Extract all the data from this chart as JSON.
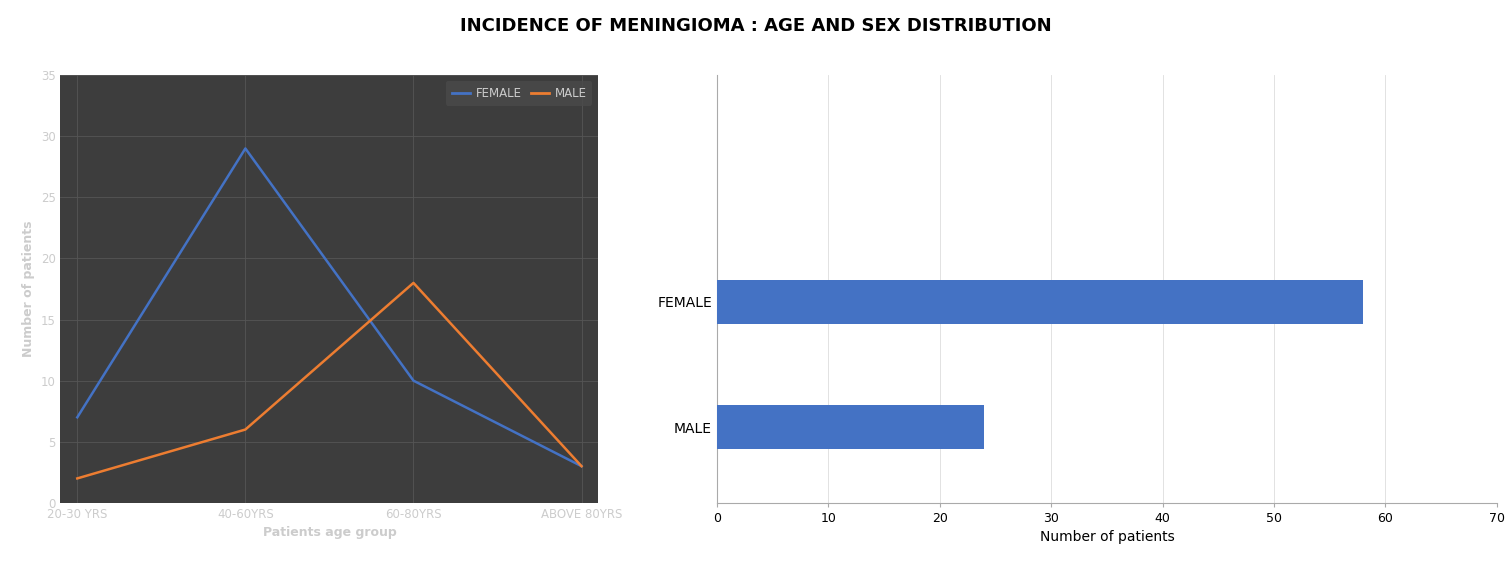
{
  "title": "INCIDENCE OF MENINGIOMA : AGE AND SEX DISTRIBUTION",
  "title_fontsize": 13,
  "title_fontweight": "bold",
  "line_chart": {
    "categories": [
      "20-30 YRS",
      "40-60YRS",
      "60-80YRS",
      "ABOVE 80YRS"
    ],
    "female_values": [
      7,
      29,
      10,
      3
    ],
    "male_values": [
      2,
      6,
      18,
      3
    ],
    "female_color": "#4472C4",
    "male_color": "#ED7D31",
    "female_label": "FEMALE",
    "male_label": "MALE",
    "ylabel": "Number of patients",
    "xlabel": "Patients age group",
    "ylim": [
      0,
      35
    ],
    "yticks": [
      0,
      5,
      10,
      15,
      20,
      25,
      30,
      35
    ],
    "bg_color": "#3d3d3d",
    "grid_color": "#555555",
    "text_color": "#cccccc",
    "legend_bg": "#4a4a4a"
  },
  "bar_chart": {
    "categories": [
      "MALE",
      "FEMALE"
    ],
    "values": [
      24,
      58
    ],
    "bar_color": "#4472C4",
    "xlabel": "Number of patients",
    "xlim": [
      0,
      70
    ],
    "xticks": [
      0,
      10,
      20,
      30,
      40,
      50,
      60,
      70
    ],
    "bg_color": "#ffffff",
    "text_color": "#000000"
  }
}
